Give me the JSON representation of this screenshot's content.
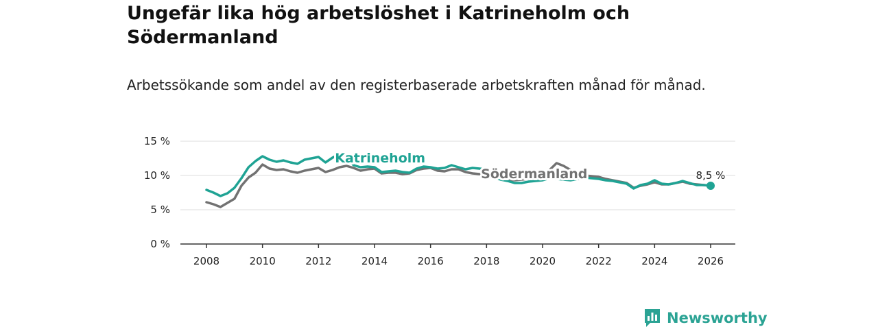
{
  "title": "Ungefär lika hög arbetslöshet i Katrineholm och Södermanland",
  "subtitle": "Arbetssökande som andel av den registerbaserade arbetskraften månad för månad.",
  "brand": {
    "name": "Newsworthy",
    "icon": "newsworthy-bar-chart-icon",
    "color": "#2ba394"
  },
  "colors": {
    "katrineholm": "#1fa394",
    "sodermanland": "#727272",
    "axis": "#333333",
    "grid": "#dddddd"
  },
  "chart_data": {
    "type": "line",
    "title": "Ungefär lika hög arbetslöshet i Katrineholm och Södermanland",
    "subtitle": "Arbetssökande som andel av den registerbaserade arbetskraften månad för månad.",
    "xlabel": "",
    "ylabel": "",
    "xlim": [
      2007.5,
      2027
    ],
    "ylim": [
      0,
      15
    ],
    "grid": true,
    "x_ticks": [
      2008,
      2010,
      2012,
      2014,
      2016,
      2018,
      2020,
      2022,
      2024,
      2026
    ],
    "x_tick_labels": [
      "2008",
      "2010",
      "2012",
      "2014",
      "2016",
      "2018",
      "2020",
      "2022",
      "2024",
      "2026"
    ],
    "y_ticks": [
      0,
      5,
      10,
      15
    ],
    "y_tick_labels": [
      "0 %",
      "5 %",
      "10 %",
      "15 %"
    ],
    "end_label": "8,5 %",
    "series": [
      {
        "name": "Katrineholm",
        "key": "katrineholm",
        "x": [
          2008.0,
          2008.25,
          2008.5,
          2008.75,
          2009.0,
          2009.25,
          2009.5,
          2009.75,
          2010.0,
          2010.25,
          2010.5,
          2010.75,
          2011.0,
          2011.25,
          2011.5,
          2011.75,
          2012.0,
          2012.25,
          2012.5,
          2012.75,
          2013.0,
          2013.25,
          2013.5,
          2013.75,
          2014.0,
          2014.25,
          2014.5,
          2014.75,
          2015.0,
          2015.25,
          2015.5,
          2015.75,
          2016.0,
          2016.25,
          2016.5,
          2016.75,
          2017.0,
          2017.25,
          2017.5,
          2017.75,
          2018.0,
          2018.25,
          2018.5,
          2018.75,
          2019.0,
          2019.25,
          2019.5,
          2019.75,
          2020.0,
          2020.25,
          2020.5,
          2020.75,
          2021.0,
          2021.25,
          2021.5,
          2021.75,
          2022.0,
          2022.25,
          2022.5,
          2022.75,
          2023.0,
          2023.25,
          2023.5,
          2023.75,
          2024.0,
          2024.25,
          2024.5,
          2024.75,
          2025.0,
          2025.25,
          2025.5,
          2025.75,
          2026.0
        ],
        "values": [
          7.9,
          7.5,
          7.0,
          7.4,
          8.2,
          9.6,
          11.2,
          12.1,
          12.8,
          12.3,
          12.0,
          12.2,
          11.9,
          11.7,
          12.3,
          12.5,
          12.7,
          11.9,
          12.6,
          13.1,
          12.8,
          11.5,
          11.2,
          11.3,
          11.2,
          10.5,
          10.6,
          10.7,
          10.5,
          10.4,
          11.0,
          11.3,
          11.2,
          11.0,
          11.1,
          11.5,
          11.2,
          10.9,
          11.1,
          11.0,
          10.9,
          9.7,
          9.4,
          9.2,
          8.9,
          8.9,
          9.1,
          9.2,
          9.3,
          9.6,
          9.5,
          9.4,
          9.3,
          9.5,
          9.7,
          9.6,
          9.5,
          9.3,
          9.2,
          9.0,
          8.8,
          8.1,
          8.6,
          8.8,
          9.3,
          8.8,
          8.7,
          8.9,
          9.2,
          8.9,
          8.6,
          8.6,
          8.5
        ]
      },
      {
        "name": "Södermanland",
        "key": "sodermanland",
        "x": [
          2008.0,
          2008.25,
          2008.5,
          2008.75,
          2009.0,
          2009.25,
          2009.5,
          2009.75,
          2010.0,
          2010.25,
          2010.5,
          2010.75,
          2011.0,
          2011.25,
          2011.5,
          2011.75,
          2012.0,
          2012.25,
          2012.5,
          2012.75,
          2013.0,
          2013.25,
          2013.5,
          2013.75,
          2014.0,
          2014.25,
          2014.5,
          2014.75,
          2015.0,
          2015.25,
          2015.5,
          2015.75,
          2016.0,
          2016.25,
          2016.5,
          2016.75,
          2017.0,
          2017.25,
          2017.5,
          2017.75,
          2018.0,
          2018.25,
          2018.5,
          2018.75,
          2019.0,
          2019.25,
          2019.5,
          2019.75,
          2020.0,
          2020.25,
          2020.5,
          2020.75,
          2021.0,
          2021.25,
          2021.5,
          2021.75,
          2022.0,
          2022.25,
          2022.5,
          2022.75,
          2023.0,
          2023.25,
          2023.5,
          2023.75,
          2024.0,
          2024.25,
          2024.5,
          2024.75,
          2025.0,
          2025.25,
          2025.5,
          2025.75,
          2026.0
        ],
        "values": [
          6.1,
          5.8,
          5.4,
          6.0,
          6.6,
          8.5,
          9.7,
          10.4,
          11.6,
          11.0,
          10.8,
          10.9,
          10.6,
          10.4,
          10.7,
          10.9,
          11.1,
          10.5,
          10.8,
          11.2,
          11.4,
          11.1,
          10.7,
          10.9,
          11.0,
          10.3,
          10.4,
          10.4,
          10.2,
          10.3,
          10.8,
          11.0,
          11.1,
          10.7,
          10.6,
          10.9,
          10.9,
          10.5,
          10.3,
          10.2,
          10.0,
          9.7,
          9.6,
          9.4,
          9.3,
          9.4,
          9.5,
          9.6,
          9.9,
          10.8,
          11.8,
          11.4,
          10.8,
          10.2,
          10.0,
          9.9,
          9.8,
          9.5,
          9.3,
          9.1,
          8.9,
          8.2,
          8.5,
          8.7,
          9.0,
          8.7,
          8.7,
          8.9,
          9.1,
          8.8,
          8.7,
          8.6,
          8.5
        ]
      }
    ],
    "annotations": [
      {
        "series": "Katrineholm",
        "text": "Katrineholm",
        "x": 2014.2,
        "y": 12.6
      },
      {
        "series": "Södermanland",
        "text": "Södermanland",
        "x": 2019.7,
        "y": 10.3
      }
    ]
  }
}
